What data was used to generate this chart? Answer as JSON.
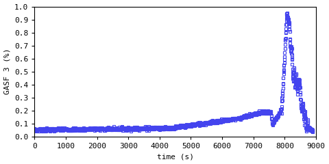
{
  "title": "",
  "xlabel": "time (s)",
  "ylabel": "GASF 3 (%)",
  "xlim": [
    0,
    9000
  ],
  "ylim": [
    0,
    1
  ],
  "xticks": [
    0,
    1000,
    2000,
    3000,
    4000,
    5000,
    6000,
    7000,
    8000,
    9000
  ],
  "yticks": [
    0,
    0.1,
    0.2,
    0.3,
    0.4,
    0.5,
    0.6,
    0.7,
    0.8,
    0.9,
    1
  ],
  "line_color": "#4444ee",
  "marker": "s",
  "markersize": 2.2,
  "linewidth": 0.0,
  "bg_color": "#ffffff"
}
